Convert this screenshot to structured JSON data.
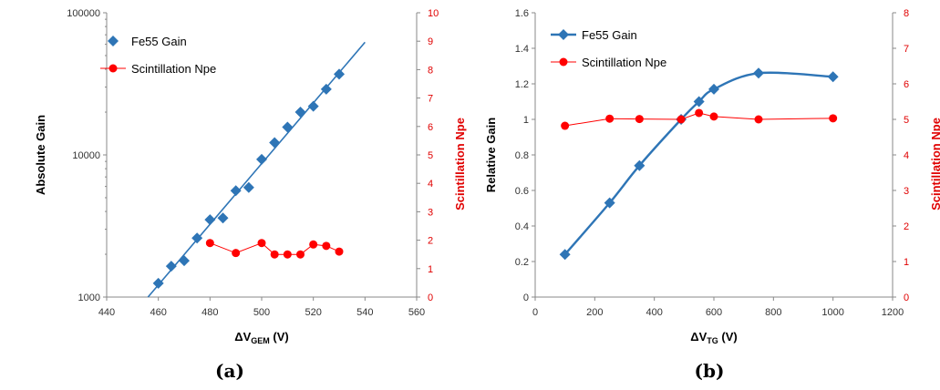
{
  "colors": {
    "gain": "#2e75b6",
    "npe": "#ff0000",
    "npe_text": "#e00000",
    "axis": "#888888"
  },
  "chart_data": [
    {
      "type": "scatter",
      "caption": "(a)",
      "xlabel": "ΔV",
      "xlabel_sub": "GEM",
      "xlabel_unit": " (V)",
      "ylabel": "Absolute Gain",
      "y2label": "Scintillation Npe",
      "xlim": [
        440,
        560
      ],
      "xticks": [
        440,
        460,
        480,
        500,
        520,
        540,
        560
      ],
      "yscale": "log",
      "ylim": [
        1000,
        100000
      ],
      "yticks": [
        1000,
        10000,
        100000
      ],
      "y2lim": [
        0,
        10
      ],
      "y2ticks": [
        0,
        1,
        2,
        3,
        4,
        5,
        6,
        7,
        8,
        9,
        10
      ],
      "legend_position": "top-left",
      "series": [
        {
          "name": "Fe55 Gain",
          "axis": "left",
          "marker": "diamond",
          "line": "fit",
          "x": [
            460,
            465,
            470,
            475,
            480,
            485,
            490,
            495,
            500,
            505,
            510,
            515,
            520,
            525,
            530
          ],
          "y": [
            1250,
            1650,
            1800,
            2600,
            3500,
            3600,
            5600,
            5900,
            9300,
            12200,
            15700,
            20000,
            22000,
            29000,
            37000
          ],
          "fit": {
            "x": [
              456,
              540
            ],
            "y": [
              1000,
              62000
            ]
          }
        },
        {
          "name": "Scintillation Npe",
          "axis": "right",
          "marker": "circle",
          "line": "connected",
          "x": [
            480,
            490,
            500,
            505,
            510,
            515,
            520,
            525,
            530
          ],
          "y": [
            1.9,
            1.55,
            1.9,
            1.5,
            1.5,
            1.5,
            1.85,
            1.8,
            1.6
          ]
        }
      ]
    },
    {
      "type": "line",
      "caption": "(b)",
      "xlabel": "ΔV",
      "xlabel_sub": "TG",
      "xlabel_unit": " (V)",
      "ylabel": "Relative Gain",
      "y2label": "Scintillation Npe",
      "xlim": [
        0,
        1200
      ],
      "xticks": [
        0,
        200,
        400,
        600,
        800,
        1000,
        1200
      ],
      "ylim": [
        0,
        1.6
      ],
      "yticks": [
        0,
        0.2,
        0.4,
        0.6,
        0.8,
        1,
        1.2,
        1.4,
        1.6
      ],
      "y2lim": [
        0,
        8
      ],
      "y2ticks": [
        0,
        1,
        2,
        3,
        4,
        5,
        6,
        7,
        8
      ],
      "legend_position": "top-left",
      "series": [
        {
          "name": "Fe55 Gain",
          "axis": "left",
          "marker": "diamond",
          "line": "smooth",
          "x": [
            100,
            250,
            350,
            490,
            550,
            600,
            750,
            1000
          ],
          "y": [
            0.24,
            0.53,
            0.74,
            1.0,
            1.1,
            1.17,
            1.26,
            1.24
          ]
        },
        {
          "name": "Scintillation Npe",
          "axis": "right",
          "marker": "circle",
          "line": "connected",
          "x": [
            100,
            250,
            350,
            490,
            550,
            600,
            750,
            1000
          ],
          "y": [
            4.82,
            5.02,
            5.01,
            5.0,
            5.18,
            5.08,
            5.0,
            5.03
          ]
        }
      ]
    }
  ]
}
